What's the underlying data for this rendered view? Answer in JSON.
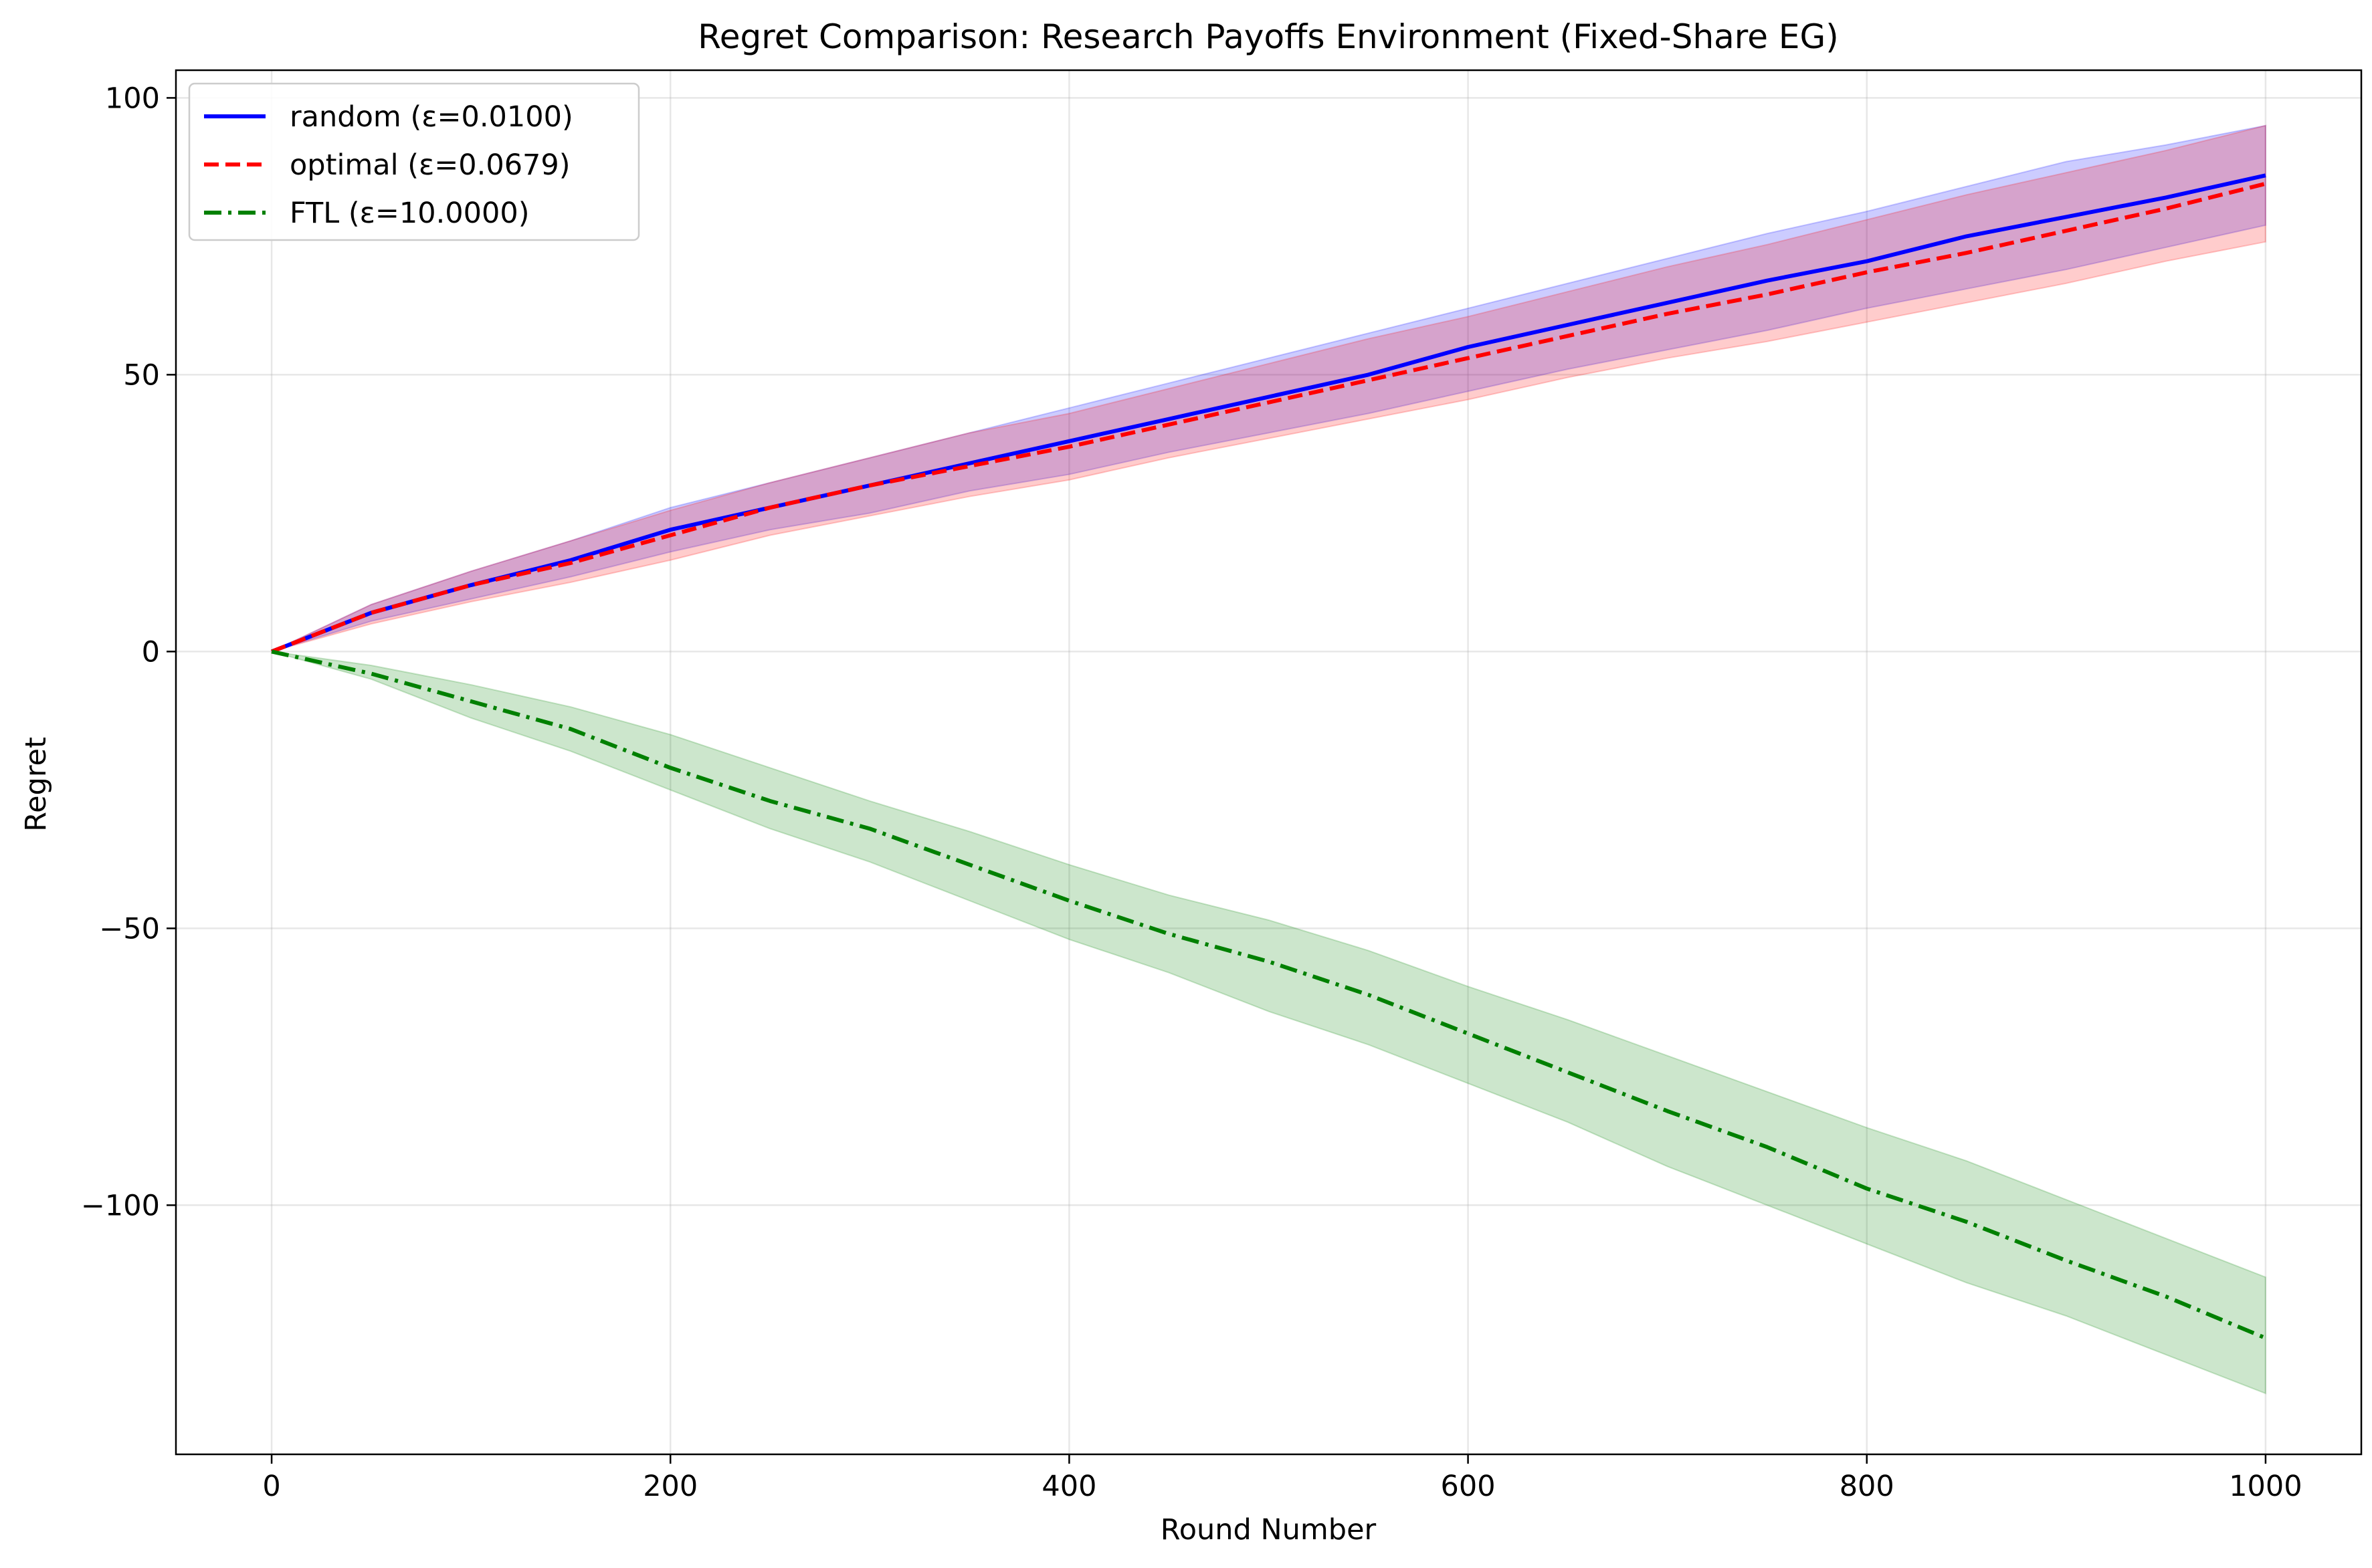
{
  "chart_data": {
    "type": "line",
    "title": "Regret Comparison: Research Payoffs Environment (Fixed-Share EG)",
    "xlabel": "Round Number",
    "ylabel": "Regret",
    "xlim": [
      -48,
      1048
    ],
    "ylim": [
      -145,
      105
    ],
    "xticks": [
      0,
      200,
      400,
      600,
      800,
      1000
    ],
    "yticks": [
      100,
      50,
      0,
      -50,
      -100
    ],
    "xtick_labels": [
      "0",
      "200",
      "400",
      "600",
      "800",
      "1000"
    ],
    "ytick_labels": [
      "100",
      "50",
      "0",
      "−50",
      "−100"
    ],
    "grid": true,
    "legend_position": "top-left",
    "x": [
      0,
      50,
      100,
      150,
      200,
      250,
      300,
      350,
      400,
      450,
      500,
      550,
      600,
      650,
      700,
      750,
      800,
      850,
      900,
      950,
      1000
    ],
    "series": [
      {
        "name": "random (ε=0.0100)",
        "color": "#0000ff",
        "line_style": "solid",
        "values": [
          0,
          7,
          12,
          16.5,
          22,
          26,
          30,
          34,
          38,
          42,
          46,
          50,
          55,
          59,
          63,
          67,
          70.5,
          75,
          78.5,
          82,
          86
        ],
        "lower": [
          0,
          5.5,
          9.5,
          13.5,
          18,
          22,
          25,
          29,
          32,
          36,
          39.5,
          43,
          47,
          51,
          54.5,
          58,
          62,
          65.5,
          69,
          73,
          77
        ],
        "upper": [
          0,
          8.5,
          14.5,
          20,
          26,
          30.5,
          35,
          39.5,
          44,
          48.5,
          53,
          57.5,
          62,
          66.5,
          71,
          75.5,
          79.5,
          84,
          88.5,
          91.5,
          95
        ]
      },
      {
        "name": "optimal (ε=0.0679)",
        "color": "#ff0000",
        "line_style": "dashed",
        "values": [
          0,
          7,
          12,
          16,
          21,
          26,
          30,
          33.5,
          37,
          41,
          45,
          49,
          53,
          57,
          61,
          64.5,
          68.5,
          72,
          76,
          80,
          84.5
        ],
        "lower": [
          0,
          5,
          9,
          12.5,
          16.5,
          21,
          24.5,
          28,
          31,
          35,
          38.5,
          42,
          45.5,
          49.5,
          53,
          56,
          59.5,
          63,
          66.5,
          70.5,
          74
        ],
        "upper": [
          0,
          8.5,
          14.5,
          20,
          25.5,
          30.5,
          35,
          39.5,
          43,
          47.5,
          52,
          56.5,
          60.5,
          65,
          69.5,
          73.5,
          78,
          82.5,
          86.5,
          90.5,
          95
        ]
      },
      {
        "name": "FTL (ε=10.0000)",
        "color": "#008000",
        "line_style": "dash-dot",
        "values": [
          0,
          -4,
          -9,
          -14,
          -21,
          -27,
          -32,
          -38.5,
          -45,
          -51,
          -56,
          -62,
          -69,
          -76,
          -83,
          -89.5,
          -97,
          -103,
          -110,
          -116.5,
          -124
        ],
        "lower": [
          0,
          -5,
          -12,
          -18,
          -25,
          -32,
          -38,
          -45,
          -52,
          -58,
          -65,
          -71,
          -78,
          -85,
          -93,
          -100,
          -107,
          -114,
          -120,
          -127,
          -134
        ],
        "upper": [
          0,
          -2.5,
          -6,
          -10,
          -15,
          -21,
          -27,
          -32.5,
          -38.5,
          -44,
          -48.5,
          -54,
          -60.5,
          -66.5,
          -73,
          -79.5,
          -86,
          -92,
          -99,
          -106,
          -113
        ]
      }
    ]
  }
}
